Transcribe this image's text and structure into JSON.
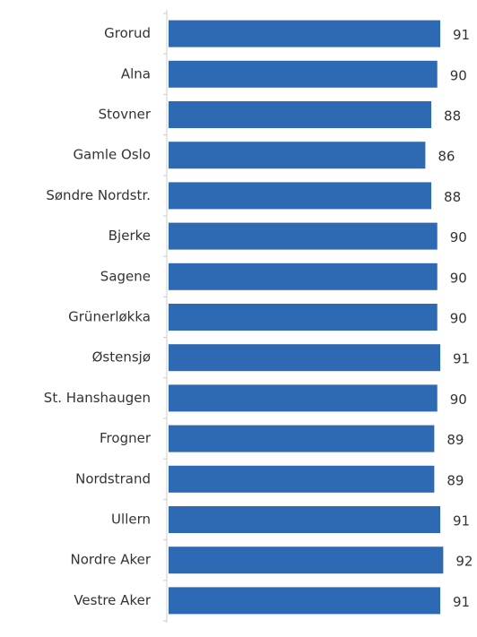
{
  "chart_data": {
    "type": "hbar",
    "categories": [
      "Grorud",
      "Alna",
      "Stovner",
      "Gamle Oslo",
      "Søndre Nordstr.",
      "Bjerke",
      "Sagene",
      "Grünerløkka",
      "Østensjø",
      "St. Hanshaugen",
      "Frogner",
      "Nordstrand",
      "Ullern",
      "Nordre Aker",
      "Vestre Aker"
    ],
    "values": [
      91,
      90,
      88,
      86,
      88,
      90,
      90,
      90,
      91,
      90,
      89,
      89,
      91,
      92,
      91
    ],
    "color": "#2e69b3",
    "xlim": [
      0,
      100
    ]
  }
}
